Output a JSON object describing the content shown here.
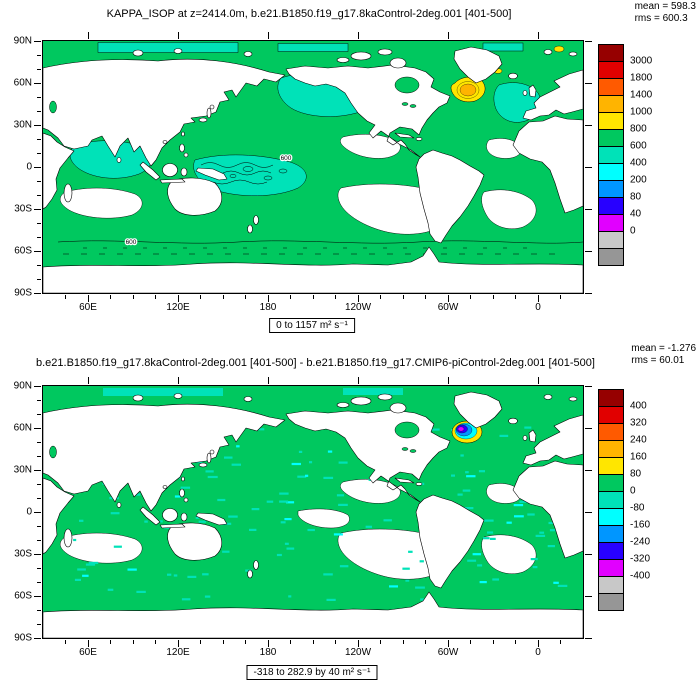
{
  "palette": {
    "map_green": "#00c85f",
    "map_cyan": "#00e2b8",
    "cyan2": "#00ffff",
    "yellow": "#ffe600",
    "orange": "#ffb400",
    "orange_red": "#ff5a00",
    "red": "#e10000",
    "dark_red": "#960000",
    "blue": "#0096ff",
    "deep_blue": "#2800ff",
    "magenta": "#e100ff",
    "gray_light": "#c8c8c8",
    "gray_dark": "#969696",
    "land": "#ffffff",
    "coast": "#000000"
  },
  "colorbar_colors": [
    "#960000",
    "#e10000",
    "#ff5a00",
    "#ffb400",
    "#ffe600",
    "#00c85f",
    "#00e2b8",
    "#00ffff",
    "#0096ff",
    "#2800ff",
    "#e100ff",
    "#c8c8c8",
    "#969696"
  ],
  "panels": [
    {
      "title": "KAPPA_ISOP at z=2414.0m, b.e21.B1850.f19_g17.8kaControl-2deg.001 [401-500]",
      "mean": "mean = 598.3",
      "rms": "rms = 600.3",
      "range_label": "0 to 1157 m² s⁻¹",
      "colorbar_labels": [
        "3000",
        "1800",
        "1400",
        "1000",
        "800",
        "600",
        "400",
        "200",
        "80",
        "40",
        "0"
      ],
      "lat_ticks": [
        "90N",
        "60N",
        "30N",
        "0",
        "30S",
        "60S",
        "90S"
      ],
      "lon_ticks": [
        "60E",
        "120E",
        "180",
        "120W",
        "60W",
        "0"
      ],
      "contour_labels": [
        "600",
        "600"
      ]
    },
    {
      "title": "b.e21.B1850.f19_g17.8kaControl-2deg.001 [401-500] - b.e21.B1850.f19_g17.CMIP6-piControl-2deg.001 [401-500]",
      "mean": "mean = -1.276",
      "rms": "rms = 60.01",
      "range_label": "-318 to 282.9 by 40 m² s⁻¹",
      "colorbar_labels": [
        "400",
        "320",
        "240",
        "160",
        "80",
        "0",
        "-80",
        "-160",
        "-240",
        "-320",
        "-400"
      ],
      "lat_ticks": [
        "90N",
        "60N",
        "30N",
        "0",
        "30S",
        "60S",
        "90S"
      ],
      "lon_ticks": [
        "60E",
        "120E",
        "180",
        "120W",
        "60W",
        "0"
      ],
      "contour_labels": []
    }
  ],
  "chart_data": [
    {
      "type": "heatmap",
      "subtype": "filled-contour world map (cylindrical equidistant, Pacific-centered)",
      "title": "KAPPA_ISOP at z=2414.0m, b.e21.B1850.f19_g17.8kaControl-2deg.001 [401-500]",
      "variable": "KAPPA_ISOP",
      "units": "m² s⁻¹",
      "stats": {
        "mean": 598.3,
        "rms": 600.3
      },
      "data_range": [
        0,
        1157
      ],
      "contour_levels": [
        0,
        40,
        80,
        200,
        400,
        600,
        800,
        1000,
        1400,
        1800,
        3000
      ],
      "level_colors_top_to_bottom": [
        "#960000",
        "#e10000",
        "#ff5a00",
        "#ffb400",
        "#ffe600",
        "#00c85f",
        "#00e2b8",
        "#00ffff",
        "#0096ff",
        "#2800ff",
        "#e100ff",
        "#c8c8c8",
        "#969696"
      ],
      "x_ticks": [
        "60E",
        "120E",
        "180",
        "120W",
        "60W",
        "0"
      ],
      "y_ticks": [
        "90N",
        "60N",
        "30N",
        "0",
        "30S",
        "60S",
        "90S"
      ],
      "legend_position": "right",
      "dominant_values": {
        "most_ocean": "600-800 (green)",
        "north_pacific_north_atlantic_indian": "400-600 (turquoise)",
        "subtropical_gyres": "below 40 (white)",
        "subpolar_north_atlantic_blob": "800-1400 (yellow/orange)"
      }
    },
    {
      "type": "heatmap",
      "subtype": "filled-contour world map difference plot",
      "title": "b.e21.B1850.f19_g17.8kaControl-2deg.001 [401-500] - b.e21.B1850.f19_g17.CMIP6-piControl-2deg.001 [401-500]",
      "variable": "KAPPA_ISOP difference",
      "units": "m² s⁻¹",
      "stats": {
        "mean": -1.276,
        "rms": 60.01
      },
      "data_range": [
        -318,
        282.9
      ],
      "contour_interval": 40,
      "contour_levels": [
        -400,
        -320,
        -240,
        -160,
        -80,
        0,
        80,
        160,
        240,
        320,
        400
      ],
      "level_colors_top_to_bottom": [
        "#960000",
        "#e10000",
        "#ff5a00",
        "#ffb400",
        "#ffe600",
        "#00c85f",
        "#00e2b8",
        "#00ffff",
        "#0096ff",
        "#2800ff",
        "#e100ff",
        "#c8c8c8",
        "#969696"
      ],
      "x_ticks": [
        "60E",
        "120E",
        "180",
        "120W",
        "60W",
        "0"
      ],
      "y_ticks": [
        "90N",
        "60N",
        "30N",
        "0",
        "30S",
        "60S",
        "90S"
      ],
      "legend_position": "right",
      "dominant_values": {
        "most_ocean": "0 to 80 (green) with -80 to 0 (turquoise) speckles",
        "subpolar_north_atlantic_blob": "-320 to -80 (blue/purple) ringed by +160 to +240 (yellow)"
      }
    }
  ]
}
